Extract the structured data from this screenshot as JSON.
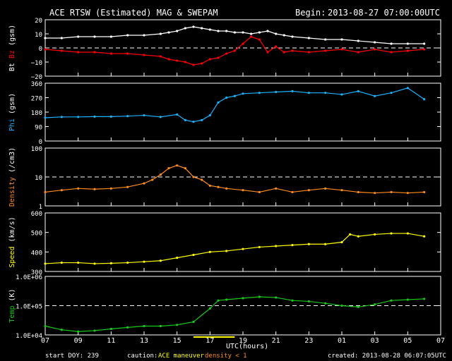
{
  "header": {
    "title": "ACE RTSW (Estimated) MAG & SWEPAM",
    "begin_label": "Begin:",
    "begin_value": "2013-08-27 07:00:00UTC"
  },
  "footer": {
    "start_doy": "start DOY: 239",
    "caution_label": "caution:",
    "caution_maneuver": "ACE maneuver",
    "caution_density": "density < 1",
    "created": "created: 2013-08-28 06:07:05UTC",
    "xaxis_label": "UTC(hours)"
  },
  "colors": {
    "background": "#000000",
    "axis": "#ffffff",
    "bt": "#ffffff",
    "bz": "#ff0000",
    "phi": "#1ab2ff",
    "density": "#ff8c1a",
    "speed": "#ffff00",
    "temp": "#19c919",
    "maneuver": "#ffff00",
    "dashed_ref": "#ffffff"
  },
  "chart_data": [
    {
      "type": "scatter",
      "panel": "mag",
      "ylabel_parts": [
        "Bt",
        "Bz",
        "(gsm)"
      ],
      "ylim": [
        -20,
        20
      ],
      "yticks": [
        -20,
        -10,
        0,
        10,
        20
      ],
      "ytick_labels": [
        "−20",
        "−10",
        "0",
        "10",
        "20"
      ],
      "ref_line": 0,
      "series": [
        {
          "name": "Bt",
          "color": "#ffffff",
          "x": [
            0,
            1,
            2,
            3,
            4,
            5,
            6,
            7,
            7.5,
            8,
            8.5,
            9,
            9.5,
            10,
            10.5,
            11,
            11.5,
            12,
            12.5,
            13,
            13.5,
            14,
            14.5,
            15,
            16,
            17,
            18,
            19,
            20,
            21,
            22,
            23
          ],
          "y": [
            7,
            7,
            8,
            8,
            8,
            9,
            9,
            10,
            11,
            12,
            14,
            15,
            14,
            13,
            12,
            12,
            11,
            11,
            10,
            11,
            12,
            10,
            9,
            8,
            7,
            6,
            6,
            5,
            4,
            3,
            3,
            3
          ]
        },
        {
          "name": "Bz",
          "color": "#ff0000",
          "x": [
            0,
            1,
            2,
            3,
            4,
            5,
            6,
            7,
            7.5,
            8,
            8.5,
            9,
            9.5,
            10,
            10.5,
            11,
            11.5,
            12,
            12.5,
            13,
            13.5,
            14,
            14.5,
            15,
            16,
            17,
            18,
            19,
            20,
            21,
            22,
            23
          ],
          "y": [
            -1,
            -2,
            -3,
            -3,
            -4,
            -4,
            -5,
            -6,
            -8,
            -9,
            -10,
            -12,
            -11,
            -8,
            -7,
            -4,
            -2,
            3,
            8,
            6,
            -3,
            1,
            -3,
            -2,
            -3,
            -2,
            -1,
            -3,
            -1,
            -3,
            -2,
            -1
          ]
        }
      ]
    },
    {
      "type": "scatter",
      "panel": "phi",
      "ylabel_parts": [
        "Phi",
        "(gsm)"
      ],
      "ylim": [
        0,
        360
      ],
      "yticks": [
        0,
        90,
        180,
        270,
        360
      ],
      "ytick_labels": [
        "0",
        "90",
        "180",
        "270",
        "360"
      ],
      "series": [
        {
          "name": "Phi",
          "color": "#1ab2ff",
          "x": [
            0,
            1,
            2,
            3,
            4,
            5,
            6,
            7,
            8,
            8.5,
            9,
            9.5,
            10,
            10.5,
            11,
            11.5,
            12,
            13,
            14,
            15,
            16,
            17,
            18,
            19,
            20,
            21,
            22,
            23
          ],
          "y": [
            145,
            150,
            150,
            152,
            152,
            155,
            160,
            150,
            165,
            130,
            120,
            130,
            160,
            240,
            270,
            280,
            295,
            300,
            305,
            310,
            300,
            300,
            290,
            310,
            280,
            300,
            330,
            260
          ]
        }
      ]
    },
    {
      "type": "scatter",
      "panel": "density",
      "ylabel_parts": [
        "Density",
        "(/cm3)"
      ],
      "yscale": "log",
      "ylim": [
        1,
        100
      ],
      "yticks": [
        1,
        10,
        100
      ],
      "ytick_labels": [
        "1",
        "10",
        "100"
      ],
      "ref_line": 10,
      "series": [
        {
          "name": "Density",
          "color": "#ff8c1a",
          "x": [
            0,
            1,
            2,
            3,
            4,
            5,
            6,
            6.5,
            7,
            7.5,
            8,
            8.5,
            9,
            9.5,
            10,
            10.5,
            11,
            12,
            13,
            14,
            15,
            16,
            17,
            18,
            19,
            20,
            21,
            22,
            23
          ],
          "y": [
            3,
            3.5,
            4,
            3.8,
            4,
            4.5,
            6,
            8,
            12,
            20,
            25,
            20,
            10,
            8,
            5,
            4.5,
            4,
            3.5,
            3,
            4,
            3,
            3.5,
            4,
            3.5,
            3,
            2.8,
            3,
            2.8,
            3
          ]
        }
      ]
    },
    {
      "type": "scatter",
      "panel": "speed",
      "ylabel_parts": [
        "Speed",
        "(km/s)"
      ],
      "ylim": [
        300,
        600
      ],
      "yticks": [
        300,
        400,
        500,
        600
      ],
      "ytick_labels": [
        "300",
        "400",
        "500",
        "600"
      ],
      "series": [
        {
          "name": "Speed",
          "color": "#ffff00",
          "x": [
            0,
            1,
            2,
            3,
            4,
            5,
            6,
            7,
            8,
            9,
            10,
            11,
            12,
            13,
            14,
            15,
            16,
            17,
            18,
            18.5,
            19,
            20,
            21,
            22,
            23
          ],
          "y": [
            340,
            345,
            345,
            340,
            342,
            345,
            350,
            355,
            370,
            385,
            400,
            405,
            415,
            425,
            430,
            435,
            440,
            440,
            450,
            490,
            480,
            490,
            495,
            495,
            480
          ]
        }
      ]
    },
    {
      "type": "scatter",
      "panel": "temp",
      "ylabel_parts": [
        "Temp",
        "(K)"
      ],
      "yscale": "log",
      "ylim": [
        10000,
        1000000
      ],
      "yticks": [
        10000,
        100000,
        1000000
      ],
      "ytick_labels": [
        "1.0E+04",
        "1.0E+05",
        "1.0E+06"
      ],
      "ref_line": 100000,
      "series": [
        {
          "name": "Temp",
          "color": "#19c919",
          "x": [
            0,
            1,
            2,
            3,
            4,
            5,
            6,
            7,
            8,
            9,
            10,
            10.5,
            11,
            12,
            13,
            14,
            15,
            16,
            17,
            18,
            19,
            20,
            21,
            22,
            23
          ],
          "y": [
            20000,
            15000,
            13000,
            14000,
            16000,
            18000,
            20000,
            20000,
            22000,
            28000,
            80000,
            150000,
            160000,
            180000,
            200000,
            190000,
            150000,
            140000,
            120000,
            100000,
            90000,
            110000,
            150000,
            160000,
            170000
          ]
        }
      ]
    }
  ],
  "x_axis": {
    "xlim": [
      0,
      24
    ],
    "ticks": [
      0,
      2,
      4,
      6,
      8,
      10,
      12,
      14,
      16,
      18,
      20,
      22,
      24
    ],
    "labels": [
      "07",
      "09",
      "11",
      "13",
      "15",
      "17",
      "19",
      "21",
      "23",
      "01",
      "03",
      "05",
      "07"
    ],
    "maneuver_range": [
      9,
      11.5
    ]
  }
}
